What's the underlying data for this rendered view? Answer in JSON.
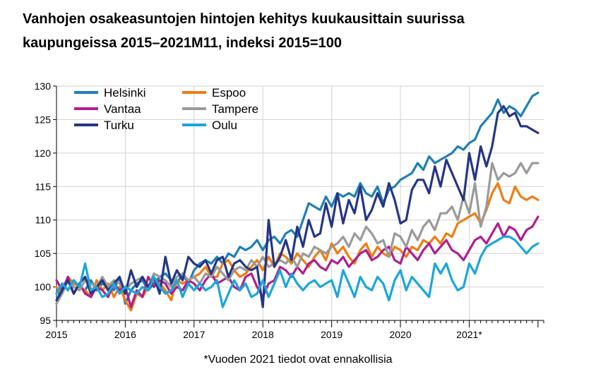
{
  "title_line1": "Vanhojen osakeasuntojen hintojen kehitys kuukausittain suurissa",
  "title_line2": "kaupungeissa 2015–2021M11, indeksi 2015=100",
  "footnote": "*Vuoden 2021 tiedot ovat ennakollisia",
  "chart_data": {
    "type": "line",
    "x_start": "2015-01",
    "x_end": "2021-11",
    "x_tick_labels": [
      "2015",
      "2016",
      "2017",
      "2018",
      "2019",
      "2020",
      "2021*"
    ],
    "y_ticks": [
      95,
      100,
      105,
      110,
      115,
      120,
      125,
      130
    ],
    "ylim": [
      95,
      130
    ],
    "grid": true,
    "legend_position": "top-left",
    "series": [
      {
        "name": "Helsinki",
        "color": "#1f7fb7",
        "values": [
          97.5,
          100.5,
          99.5,
          101,
          100,
          99.5,
          101,
          99.5,
          100.5,
          100,
          99.5,
          101.5,
          97.5,
          99.5,
          100.5,
          101,
          99.5,
          100.5,
          101.5,
          102,
          101,
          100.5,
          102,
          100.5,
          102.5,
          103.5,
          104,
          103.5,
          104.5,
          103.5,
          105,
          104.5,
          106,
          105.5,
          106,
          107,
          105.5,
          107,
          107.5,
          106.5,
          108,
          108.5,
          107.5,
          110,
          112.5,
          112,
          111.5,
          113.5,
          112,
          114,
          113.5,
          114,
          113.5,
          115.5,
          114,
          113.5,
          115,
          112.5,
          114.5,
          115,
          116,
          116.5,
          117,
          118.5,
          117.5,
          119.5,
          118.5,
          119,
          119.5,
          120,
          121,
          120.5,
          121.5,
          122,
          124,
          125,
          126,
          128,
          126,
          127,
          126.5,
          125.5,
          127,
          128.5,
          129
        ]
      },
      {
        "name": "Espoo",
        "color": "#ee7d11",
        "values": [
          100,
          99,
          101.5,
          100.5,
          100,
          99.5,
          98.5,
          101,
          99.5,
          100.5,
          98.5,
          100,
          98,
          96.5,
          99,
          98.5,
          100,
          101,
          100.5,
          99.5,
          98,
          101,
          100.5,
          101,
          101.5,
          102,
          103,
          101.5,
          101.5,
          103.5,
          104,
          102.5,
          101.5,
          102,
          103,
          104,
          102.5,
          104.5,
          103,
          105,
          104.5,
          103.5,
          105,
          104,
          103,
          104.5,
          105.5,
          104,
          106.5,
          105,
          106,
          104.5,
          103.5,
          105.5,
          106.5,
          104.5,
          106,
          105,
          104.5,
          106,
          105.5,
          104.5,
          106,
          105.5,
          107,
          106.5,
          107.5,
          106.5,
          108,
          107.5,
          109.5,
          110,
          110.5,
          111,
          109.5,
          111.5,
          114,
          115.5,
          113,
          112.5,
          115,
          113.5,
          113,
          113.5,
          113
        ]
      },
      {
        "name": "Vantaa",
        "color": "#ae1f8f",
        "values": [
          101,
          99.5,
          101.5,
          99,
          100.5,
          99,
          98.5,
          100,
          99.5,
          98.5,
          100.5,
          99.5,
          100,
          97,
          99.5,
          98.5,
          101.5,
          100,
          101,
          100.5,
          99,
          100,
          99.5,
          101,
          100.5,
          99.5,
          101,
          102,
          100.5,
          101,
          101.5,
          100,
          99.5,
          101.5,
          102,
          100,
          98.5,
          100.5,
          101,
          103,
          102.5,
          101.5,
          103,
          102,
          103.5,
          104,
          103,
          102.5,
          104,
          103.5,
          104.5,
          103,
          104,
          105,
          105.5,
          104,
          104.5,
          105.5,
          106,
          104,
          103.5,
          106,
          105,
          104,
          105.5,
          106.5,
          105,
          106,
          107,
          105.5,
          105,
          104,
          105.5,
          107,
          107.5,
          106.5,
          108,
          109.5,
          107.5,
          109,
          108.5,
          107,
          108.5,
          109,
          110.5
        ]
      },
      {
        "name": "Tampere",
        "color": "#9a9a9a",
        "values": [
          97.5,
          99,
          101,
          100,
          99.5,
          101,
          100.5,
          100,
          101.5,
          100,
          101,
          100.5,
          99.5,
          100.5,
          101,
          101.5,
          100,
          102,
          101.5,
          101,
          100,
          101.5,
          102,
          101,
          101.5,
          100.5,
          102,
          101.5,
          103,
          102,
          101,
          102.5,
          103,
          102.5,
          104,
          103,
          104.5,
          103,
          103.5,
          104,
          103.5,
          104.5,
          103,
          105,
          104.5,
          106,
          105.5,
          105,
          106,
          106.5,
          107.5,
          106,
          108,
          107,
          109,
          108,
          106.5,
          107,
          104.5,
          108,
          107.5,
          106,
          108.5,
          107,
          109,
          110,
          108.5,
          111,
          111,
          112,
          110,
          113.5,
          111,
          115.5,
          109,
          112,
          118.5,
          116,
          117,
          116.5,
          117,
          118.5,
          117,
          118.5,
          118.5
        ]
      },
      {
        "name": "Turku",
        "color": "#253683",
        "values": [
          98,
          99.5,
          101,
          99,
          100.5,
          101.5,
          99,
          100,
          101,
          99.5,
          100.5,
          101.5,
          99,
          102.5,
          100,
          101.5,
          100,
          101.5,
          99,
          104.5,
          100.5,
          102.5,
          101,
          104.5,
          103.5,
          103,
          104,
          102,
          104,
          104.5,
          101.5,
          103.5,
          104,
          103,
          102.5,
          103,
          97,
          110,
          103,
          104.5,
          107,
          104,
          109,
          106,
          110,
          107.5,
          108,
          112.5,
          109,
          114,
          109.5,
          113,
          111,
          115,
          110,
          111.5,
          114,
          112,
          115.5,
          113,
          109.5,
          110,
          114.5,
          116,
          116,
          114,
          118,
          115,
          119,
          117,
          115,
          113,
          120,
          116,
          121,
          118,
          121,
          126,
          127,
          125.5,
          126,
          124,
          124,
          123.5,
          123
        ]
      },
      {
        "name": "Oulu",
        "color": "#1ba6d9",
        "values": [
          99,
          100.5,
          99.5,
          101,
          100,
          103.5,
          99.5,
          100,
          98.5,
          99,
          100.5,
          99,
          100,
          99.5,
          99,
          100,
          99.5,
          101.5,
          100,
          99,
          99.5,
          101,
          98.5,
          100.5,
          99.5,
          100.5,
          99.5,
          100,
          101,
          97,
          99,
          101,
          99.5,
          100.5,
          98.5,
          99,
          101,
          98.5,
          100.5,
          102.5,
          100,
          102,
          100.5,
          99.5,
          100.5,
          101,
          100,
          100.5,
          101,
          98.5,
          102.5,
          100.5,
          98.5,
          101.5,
          100,
          99.5,
          101.5,
          100.5,
          98,
          101,
          102.5,
          99.5,
          101.5,
          100.5,
          99.5,
          98.5,
          103.5,
          102,
          103.5,
          101,
          99.5,
          100,
          103.5,
          102,
          104.5,
          106,
          106.5,
          107,
          107.5,
          107.5,
          107,
          106,
          105,
          106,
          106.5
        ]
      }
    ]
  }
}
